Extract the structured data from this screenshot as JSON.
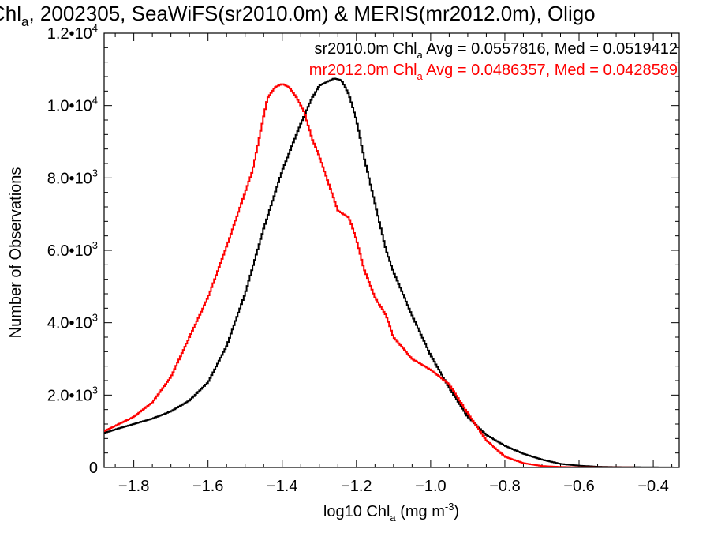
{
  "chart_data": {
    "type": "line",
    "title": {
      "pre": "Chl",
      "sub": "a",
      "post": ", 2002305, SeaWiFS(sr2010.0m) & MERIS(mr2012.0m), Oligo"
    },
    "xlabel": {
      "pre": "log10 Chl",
      "sub": "a",
      "mid": " (mg m",
      "sup": "-3",
      "post": ")"
    },
    "ylabel": "Number of Observations",
    "xlim": [
      -1.88,
      -0.33
    ],
    "ylim": [
      0,
      12000
    ],
    "grid": false,
    "x_ticks": [
      {
        "value": -1.8,
        "label": "−1.8"
      },
      {
        "value": -1.6,
        "label": "−1.6"
      },
      {
        "value": -1.4,
        "label": "−1.4"
      },
      {
        "value": -1.2,
        "label": "−1.2"
      },
      {
        "value": -1.0,
        "label": "−1.0"
      },
      {
        "value": -0.8,
        "label": "−0.8"
      },
      {
        "value": -0.6,
        "label": "−0.6"
      },
      {
        "value": -0.4,
        "label": "−0.4"
      }
    ],
    "y_ticks": [
      {
        "value": 0,
        "mant": "0",
        "exp": ""
      },
      {
        "value": 2000,
        "mant": "2.0•10",
        "exp": "3"
      },
      {
        "value": 4000,
        "mant": "4.0•10",
        "exp": "3"
      },
      {
        "value": 6000,
        "mant": "6.0•10",
        "exp": "3"
      },
      {
        "value": 8000,
        "mant": "8.0•10",
        "exp": "3"
      },
      {
        "value": 10000,
        "mant": "1.0•10",
        "exp": "4"
      },
      {
        "value": 12000,
        "mant": "1.2•10",
        "exp": "4"
      }
    ],
    "legend": [
      {
        "pre": "sr2010.0m Chl",
        "sub": "a",
        "post": " Avg = 0.0557816, Med = 0.0519412",
        "color": "#000000"
      },
      {
        "pre": "mr2012.0m Chl",
        "sub": "a",
        "post": " Avg = 0.0486357, Med = 0.0428589",
        "color": "#ff0000"
      }
    ],
    "legend_position": "top-right",
    "series": [
      {
        "color": "#000000",
        "style": "step",
        "x": [
          -1.88,
          -1.85,
          -1.8,
          -1.75,
          -1.7,
          -1.65,
          -1.6,
          -1.55,
          -1.5,
          -1.45,
          -1.4,
          -1.35,
          -1.32,
          -1.3,
          -1.28,
          -1.26,
          -1.24,
          -1.22,
          -1.2,
          -1.18,
          -1.15,
          -1.12,
          -1.1,
          -1.05,
          -1.0,
          -0.95,
          -0.9,
          -0.85,
          -0.8,
          -0.75,
          -0.7,
          -0.65,
          -0.6,
          -0.55,
          -0.5,
          -0.4,
          -0.33
        ],
        "y": [
          950,
          1050,
          1200,
          1350,
          1550,
          1850,
          2350,
          3350,
          4800,
          6600,
          8200,
          9500,
          10200,
          10550,
          10650,
          10750,
          10700,
          10300,
          9600,
          8600,
          7300,
          6000,
          5400,
          4200,
          3100,
          2200,
          1400,
          900,
          600,
          380,
          220,
          100,
          50,
          20,
          10,
          5,
          0
        ]
      },
      {
        "color": "#ff0000",
        "style": "step",
        "x": [
          -1.88,
          -1.85,
          -1.8,
          -1.75,
          -1.7,
          -1.65,
          -1.6,
          -1.55,
          -1.5,
          -1.48,
          -1.46,
          -1.44,
          -1.42,
          -1.4,
          -1.38,
          -1.36,
          -1.34,
          -1.32,
          -1.3,
          -1.28,
          -1.25,
          -1.22,
          -1.2,
          -1.18,
          -1.15,
          -1.12,
          -1.1,
          -1.05,
          -1.0,
          -0.95,
          -0.9,
          -0.85,
          -0.8,
          -0.75,
          -0.7,
          -0.65,
          -0.6,
          -0.4,
          -0.33
        ],
        "y": [
          1000,
          1150,
          1400,
          1800,
          2500,
          3600,
          4700,
          6100,
          7600,
          8200,
          9200,
          10200,
          10500,
          10600,
          10500,
          10200,
          9800,
          9100,
          8600,
          8000,
          7100,
          6900,
          6300,
          5500,
          4700,
          4200,
          3600,
          3000,
          2700,
          2300,
          1500,
          750,
          300,
          120,
          40,
          15,
          5,
          0,
          0
        ]
      }
    ]
  }
}
